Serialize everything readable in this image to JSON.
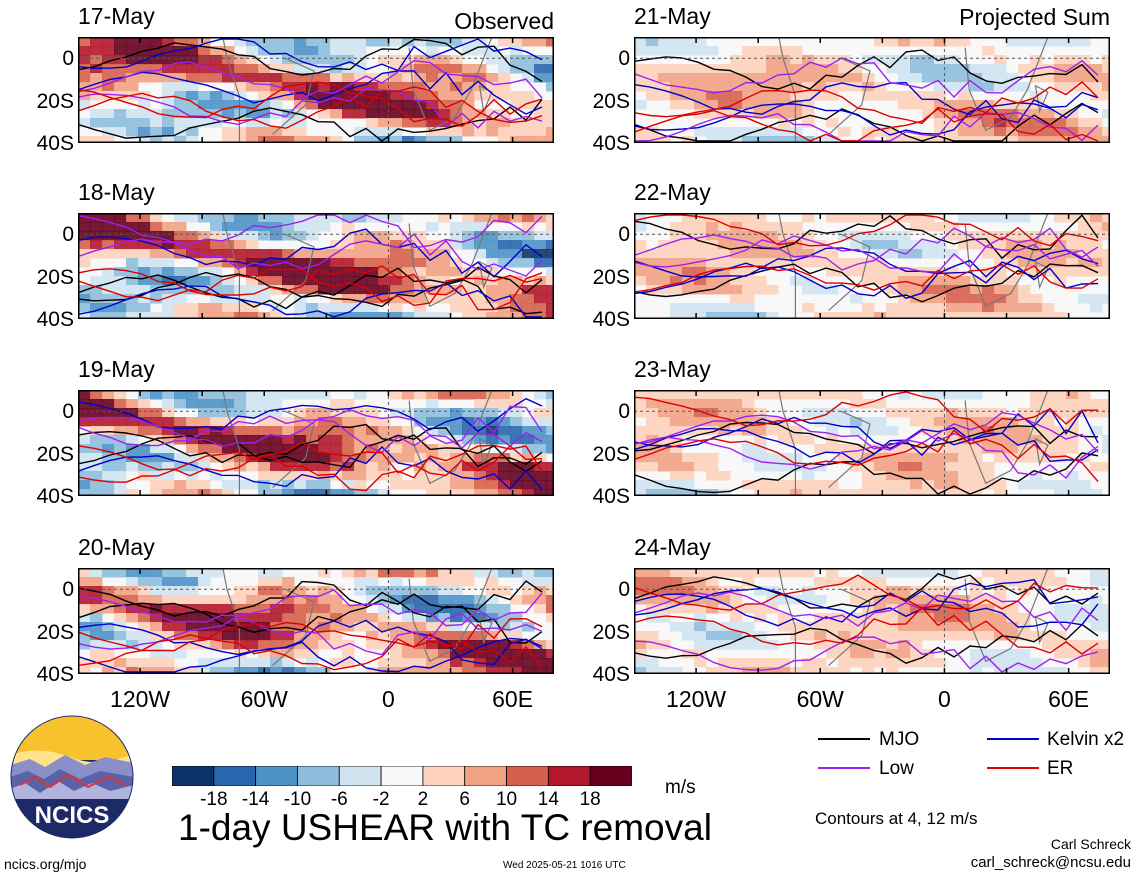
{
  "panels_left_label": "Observed",
  "panels_right_label": "Projected Sum",
  "chart_data": [
    {
      "type": "heatmap",
      "title": "17-May",
      "column": "Observed",
      "x_ticks": [
        "120W",
        "60W",
        "0",
        "60E"
      ],
      "y_ticks": [
        "0",
        "20S",
        "40S"
      ],
      "x_range": [
        -150,
        80
      ],
      "y_range": [
        -40,
        10
      ]
    },
    {
      "type": "heatmap",
      "title": "18-May",
      "column": "Observed",
      "x_ticks": [
        "120W",
        "60W",
        "0",
        "60E"
      ],
      "y_ticks": [
        "0",
        "20S",
        "40S"
      ],
      "x_range": [
        -150,
        80
      ],
      "y_range": [
        -40,
        10
      ]
    },
    {
      "type": "heatmap",
      "title": "19-May",
      "column": "Observed",
      "x_ticks": [
        "120W",
        "60W",
        "0",
        "60E"
      ],
      "y_ticks": [
        "0",
        "20S",
        "40S"
      ],
      "x_range": [
        -150,
        80
      ],
      "y_range": [
        -40,
        10
      ]
    },
    {
      "type": "heatmap",
      "title": "20-May",
      "column": "Observed",
      "x_ticks": [
        "120W",
        "60W",
        "0",
        "60E"
      ],
      "y_ticks": [
        "0",
        "20S",
        "40S"
      ],
      "x_range": [
        -150,
        80
      ],
      "y_range": [
        -40,
        10
      ]
    },
    {
      "type": "heatmap",
      "title": "21-May",
      "column": "Projected Sum",
      "x_ticks": [
        "120W",
        "60W",
        "0",
        "60E"
      ],
      "y_ticks": [
        "0",
        "20S",
        "40S"
      ],
      "x_range": [
        -150,
        80
      ],
      "y_range": [
        -40,
        10
      ]
    },
    {
      "type": "heatmap",
      "title": "22-May",
      "column": "Projected Sum",
      "x_ticks": [
        "120W",
        "60W",
        "0",
        "60E"
      ],
      "y_ticks": [
        "0",
        "20S",
        "40S"
      ],
      "x_range": [
        -150,
        80
      ],
      "y_range": [
        -40,
        10
      ]
    },
    {
      "type": "heatmap",
      "title": "23-May",
      "column": "Projected Sum",
      "x_ticks": [
        "120W",
        "60W",
        "0",
        "60E"
      ],
      "y_ticks": [
        "0",
        "20S",
        "40S"
      ],
      "x_range": [
        -150,
        80
      ],
      "y_range": [
        -40,
        10
      ]
    },
    {
      "type": "heatmap",
      "title": "24-May",
      "column": "Projected Sum",
      "x_ticks": [
        "120W",
        "60W",
        "0",
        "60E"
      ],
      "y_ticks": [
        "0",
        "20S",
        "40S"
      ],
      "x_range": [
        -150,
        80
      ],
      "y_range": [
        -40,
        10
      ]
    }
  ],
  "colorbar": {
    "labels": [
      "-18",
      "-14",
      "-10",
      "-6",
      "-2",
      "2",
      "6",
      "10",
      "14",
      "18"
    ],
    "colors": [
      "#0d3468",
      "#2a66ad",
      "#4d92c6",
      "#8ebedc",
      "#cfe3ef",
      "#f8f8f8",
      "#fcd2bd",
      "#f1a285",
      "#d6604d",
      "#b2182b",
      "#67001f"
    ],
    "unit": "m/s"
  },
  "legend": {
    "items": [
      {
        "label": "MJO",
        "color": "#000000"
      },
      {
        "label": "Kelvin x2",
        "color": "#0000cc"
      },
      {
        "label": "Low",
        "color": "#a020f0"
      },
      {
        "label": "ER",
        "color": "#dd0000"
      }
    ],
    "note": "Contours at 4, 12 m/s"
  },
  "main_title": "1-day USHEAR with TC removal",
  "logo_text": "NCICS",
  "footer": {
    "left": "ncics.org/mjo",
    "center": "Wed 2025-05-21 1016 UTC",
    "author": "Carl Schreck",
    "email": "carl_schreck@ncsu.edu"
  }
}
